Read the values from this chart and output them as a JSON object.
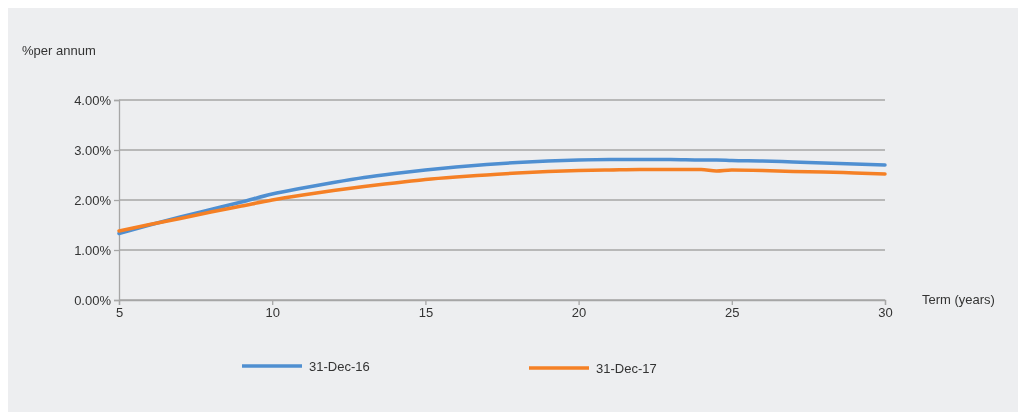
{
  "chart_data": {
    "type": "line",
    "xlabel": "Term (years)",
    "ylabel": "%per annum",
    "x": [
      5,
      6,
      7,
      8,
      9,
      10,
      11,
      12,
      13,
      14,
      15,
      16,
      17,
      18,
      19,
      20,
      21,
      22,
      23,
      24,
      24.5,
      25,
      26,
      27,
      28,
      29,
      30
    ],
    "series": [
      {
        "name": "31-Dec-16",
        "color": "#4f8fd1",
        "values": [
          1.33,
          1.5,
          1.66,
          1.81,
          1.96,
          2.12,
          2.24,
          2.35,
          2.45,
          2.53,
          2.6,
          2.66,
          2.71,
          2.75,
          2.78,
          2.8,
          2.81,
          2.81,
          2.81,
          2.8,
          2.8,
          2.79,
          2.78,
          2.76,
          2.74,
          2.72,
          2.7
        ]
      },
      {
        "name": "31-Dec-17",
        "color": "#f58025",
        "values": [
          1.38,
          1.51,
          1.63,
          1.76,
          1.88,
          2.0,
          2.1,
          2.19,
          2.27,
          2.34,
          2.41,
          2.46,
          2.5,
          2.54,
          2.57,
          2.59,
          2.6,
          2.61,
          2.61,
          2.61,
          2.58,
          2.6,
          2.59,
          2.57,
          2.56,
          2.54,
          2.52
        ]
      }
    ],
    "xlim": [
      5,
      30
    ],
    "xticks": [
      5,
      10,
      15,
      20,
      25,
      30
    ],
    "ylim": [
      0,
      4
    ],
    "yticks": [
      {
        "value": 0,
        "label": "0.00%"
      },
      {
        "value": 1,
        "label": "1.00%"
      },
      {
        "value": 2,
        "label": "2.00%"
      },
      {
        "value": 3,
        "label": "3.00%"
      },
      {
        "value": 4,
        "label": "4.00%"
      }
    ],
    "grid": "y",
    "legend": "bottom",
    "marker": "none",
    "line_style": "solid"
  }
}
